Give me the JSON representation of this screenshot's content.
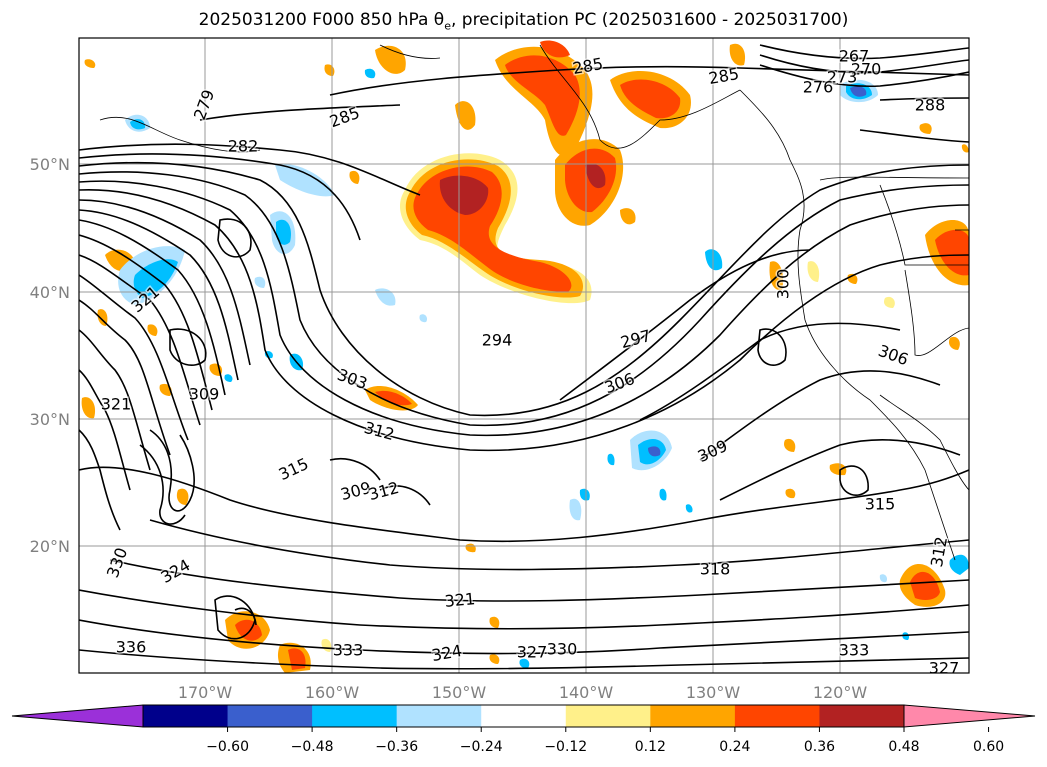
{
  "title_main": "2025031200 F000 850 hPa θ",
  "title_sub": "e",
  "title_rest": ", precipitation PC (2025031600 - 2025031700)",
  "lon_ticks": [
    "170°W",
    "160°W",
    "150°W",
    "140°W",
    "130°W",
    "120°W"
  ],
  "lat_ticks": [
    "50°N",
    "40°N",
    "30°N",
    "20°N"
  ],
  "colorbar": {
    "ticks": [
      "−0.60",
      "−0.48",
      "−0.36",
      "−0.24",
      "−0.12",
      "0.12",
      "0.24",
      "0.36",
      "0.48",
      "0.60"
    ],
    "colors": [
      "#9b30d9",
      "#00008b",
      "#3a5fcd",
      "#00bfff",
      "#b0e2ff",
      "#ffffff",
      "#fff08a",
      "#ffa500",
      "#ff4500",
      "#b22222",
      "#ff88aa"
    ]
  },
  "contour_labels": [
    "279",
    "282",
    "285",
    "285",
    "285",
    "267",
    "270",
    "273",
    "276",
    "288",
    "294",
    "297",
    "300",
    "303",
    "306",
    "306",
    "309",
    "309",
    "309",
    "312",
    "312",
    "312",
    "315",
    "315",
    "318",
    "321",
    "321",
    "321",
    "324",
    "327",
    "330",
    "330",
    "333",
    "333",
    "336",
    "324",
    "327"
  ]
}
